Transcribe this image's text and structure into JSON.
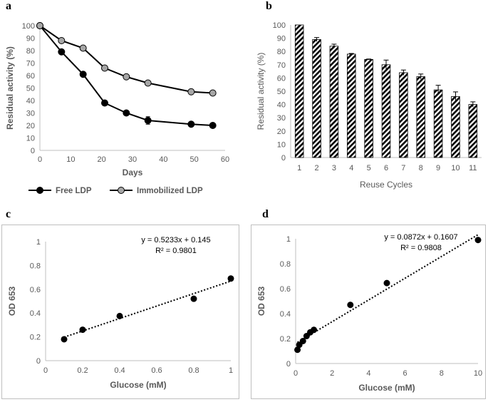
{
  "colors": {
    "axis": "#bfbfbf",
    "text": "#595959",
    "free": "#000000",
    "immobilized": "#a6a6a6",
    "bar_hatch": "#000000"
  },
  "chart_data": [
    {
      "panel_label": "a",
      "type": "line",
      "xlabel": "Days",
      "ylabel": "Residual activity (%)",
      "xlim": [
        0,
        60
      ],
      "ylim": [
        0,
        100
      ],
      "xticks": [
        "0",
        "10",
        "20",
        "30",
        "40",
        "50",
        "60"
      ],
      "yticks": [
        "0",
        "10",
        "20",
        "30",
        "40",
        "50",
        "60",
        "70",
        "80",
        "90",
        "100"
      ],
      "legend_position": "bottom",
      "series": [
        {
          "name": "Free LDP",
          "marker": "filled",
          "x": [
            0,
            7,
            14,
            21,
            28,
            35,
            49,
            56
          ],
          "y": [
            100,
            79,
            61,
            38,
            30,
            24,
            21,
            20
          ],
          "err": [
            0,
            0,
            0,
            0,
            0,
            3,
            0,
            0
          ]
        },
        {
          "name": "Immobilized LDP",
          "marker": "grey",
          "x": [
            0,
            7,
            14,
            21,
            28,
            35,
            49,
            56
          ],
          "y": [
            100,
            88,
            82,
            66,
            59,
            54,
            47,
            46
          ],
          "err": [
            0,
            0,
            0,
            0,
            0,
            0,
            0,
            0
          ]
        }
      ]
    },
    {
      "panel_label": "b",
      "type": "bar",
      "xlabel": "Reuse Cycles",
      "ylabel": "Residual activity (%)",
      "ylim": [
        0,
        100
      ],
      "yticks": [
        "0",
        "10",
        "20",
        "30",
        "40",
        "50",
        "60",
        "70",
        "80",
        "90",
        "100"
      ],
      "categories": [
        "1",
        "2",
        "3",
        "4",
        "5",
        "6",
        "7",
        "8",
        "9",
        "10",
        "11"
      ],
      "values": [
        100,
        89,
        84,
        78,
        74,
        70,
        64,
        61,
        51,
        46,
        40
      ],
      "err": [
        0,
        1.5,
        1.5,
        0.5,
        0.3,
        3.5,
        2,
        2,
        3.5,
        3.5,
        2
      ]
    },
    {
      "panel_label": "c",
      "type": "scatter",
      "xlabel": "Glucose (mM)",
      "ylabel": "OD 653",
      "xlim": [
        0,
        1
      ],
      "ylim": [
        0,
        1
      ],
      "xticks": [
        "0",
        "0.2",
        "0.4",
        "0.6",
        "0.8",
        "1"
      ],
      "yticks": [
        "0",
        "0.2",
        "0.4",
        "0.6",
        "0.8",
        "1"
      ],
      "x": [
        0.1,
        0.2,
        0.4,
        0.8,
        1.0
      ],
      "y": [
        0.18,
        0.26,
        0.375,
        0.52,
        0.69
      ],
      "trendline": {
        "slope": 0.5233,
        "intercept": 0.145,
        "x_from": 0.1,
        "x_to": 1.0
      },
      "equation": "y = 0.5233x + 0.145",
      "r2": "R² = 0.9801"
    },
    {
      "panel_label": "d",
      "type": "scatter",
      "xlabel": "Glucose (mM)",
      "ylabel": "OD 653",
      "xlim": [
        0,
        10
      ],
      "ylim": [
        0,
        1
      ],
      "xticks": [
        "0",
        "2",
        "4",
        "6",
        "8",
        "10"
      ],
      "yticks": [
        "0",
        "0.2",
        "0.4",
        "0.6",
        "0.8",
        "1"
      ],
      "x": [
        0.1,
        0.2,
        0.4,
        0.6,
        0.8,
        1.0,
        3,
        5,
        10
      ],
      "y": [
        0.11,
        0.15,
        0.18,
        0.22,
        0.25,
        0.27,
        0.47,
        0.645,
        0.99
      ],
      "trendline": {
        "slope": 0.0872,
        "intercept": 0.1607,
        "x_from": 0.1,
        "x_to": 10
      },
      "equation": "y = 0.0872x + 0.1607",
      "r2": "R² = 0.9808"
    }
  ]
}
